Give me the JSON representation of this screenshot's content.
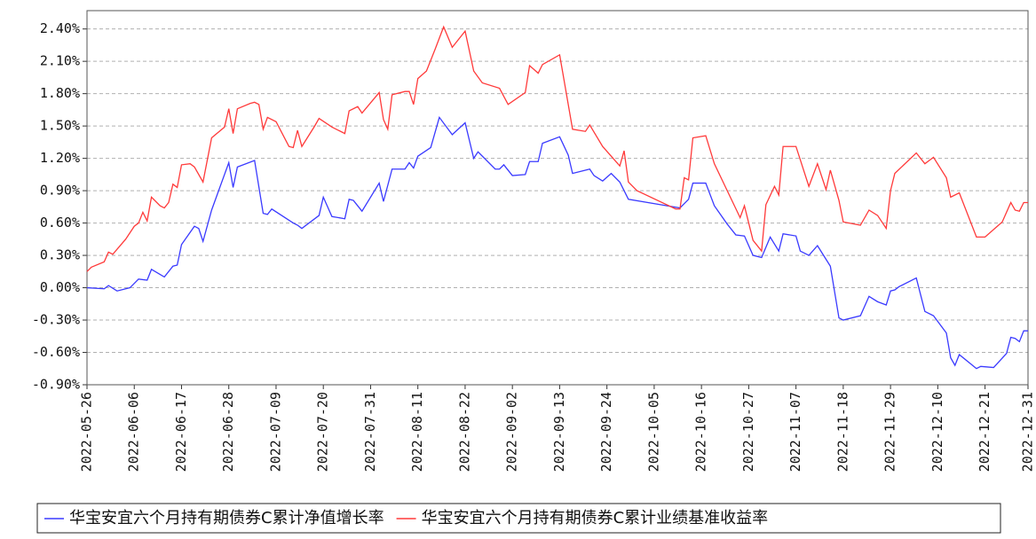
{
  "chart_data": {
    "type": "line",
    "xlim": [
      "2022-05-26",
      "2022-12-31"
    ],
    "xticks": [
      "2022-05-26",
      "2022-06-06",
      "2022-06-17",
      "2022-06-28",
      "2022-07-09",
      "2022-07-20",
      "2022-07-31",
      "2022-08-11",
      "2022-08-22",
      "2022-09-02",
      "2022-09-13",
      "2022-09-24",
      "2022-10-05",
      "2022-10-16",
      "2022-10-27",
      "2022-11-07",
      "2022-11-18",
      "2022-11-29",
      "2022-12-10",
      "2022-12-21",
      "2022-12-31"
    ],
    "ylim": [
      -0.9,
      2.57
    ],
    "yticks": [
      {
        "value": 2.4,
        "label": "2.40%"
      },
      {
        "value": 2.1,
        "label": "2.10%"
      },
      {
        "value": 1.8,
        "label": "1.80%"
      },
      {
        "value": 1.5,
        "label": "1.50%"
      },
      {
        "value": 1.2,
        "label": "1.20%"
      },
      {
        "value": 0.9,
        "label": "0.90%"
      },
      {
        "value": 0.6,
        "label": "0.60%"
      },
      {
        "value": 0.3,
        "label": "0.30%"
      },
      {
        "value": 0,
        "label": "0.00%"
      },
      {
        "value": -0.3,
        "label": "-0.30%"
      },
      {
        "value": -0.6,
        "label": "-0.60%"
      },
      {
        "value": -0.9,
        "label": "-0.90%"
      }
    ],
    "grid": true,
    "series": [
      {
        "name": "华宝安宜六个月持有期债券C累计净值增长率",
        "color": "#3a3aff",
        "x": [
          "2022-05-26",
          "2022-05-30",
          "2022-05-31",
          "2022-06-02",
          "2022-06-05",
          "2022-06-07",
          "2022-06-09",
          "2022-06-10",
          "2022-06-13",
          "2022-06-15",
          "2022-06-16",
          "2022-06-17",
          "2022-06-20",
          "2022-06-21",
          "2022-06-22",
          "2022-06-24",
          "2022-06-28",
          "2022-06-29",
          "2022-06-30",
          "2022-07-04",
          "2022-07-06",
          "2022-07-07",
          "2022-07-08",
          "2022-07-13",
          "2022-07-14",
          "2022-07-15",
          "2022-07-19",
          "2022-07-20",
          "2022-07-22",
          "2022-07-25",
          "2022-07-26",
          "2022-07-27",
          "2022-07-29",
          "2022-08-02",
          "2022-08-03",
          "2022-08-05",
          "2022-08-08",
          "2022-08-09",
          "2022-08-10",
          "2022-08-11",
          "2022-08-14",
          "2022-08-16",
          "2022-08-19",
          "2022-08-22",
          "2022-08-24",
          "2022-08-25",
          "2022-08-29",
          "2022-08-30",
          "2022-08-31",
          "2022-09-02",
          "2022-09-05",
          "2022-09-06",
          "2022-09-08",
          "2022-09-09",
          "2022-09-13",
          "2022-09-15",
          "2022-09-16",
          "2022-09-20",
          "2022-09-21",
          "2022-09-23",
          "2022-09-25",
          "2022-09-27",
          "2022-09-29",
          "2022-10-08",
          "2022-10-11",
          "2022-10-13",
          "2022-10-14",
          "2022-10-17",
          "2022-10-19",
          "2022-10-22",
          "2022-10-24",
          "2022-10-26",
          "2022-10-28",
          "2022-10-30",
          "2022-11-01",
          "2022-11-03",
          "2022-11-04",
          "2022-11-07",
          "2022-11-08",
          "2022-11-10",
          "2022-11-12",
          "2022-11-15",
          "2022-11-17",
          "2022-11-18",
          "2022-11-22",
          "2022-11-24",
          "2022-11-26",
          "2022-11-28",
          "2022-11-29",
          "2022-11-30",
          "2022-12-01",
          "2022-12-05",
          "2022-12-07",
          "2022-12-09",
          "2022-12-12",
          "2022-12-13",
          "2022-12-14",
          "2022-12-15",
          "2022-12-19",
          "2022-12-20",
          "2022-12-23",
          "2022-12-26",
          "2022-12-27",
          "2022-12-28",
          "2022-12-29",
          "2022-12-30",
          "2022-12-31"
        ],
        "values": [
          0.0,
          -0.01,
          0.02,
          -0.03,
          0.0,
          0.08,
          0.07,
          0.17,
          0.1,
          0.2,
          0.21,
          0.4,
          0.57,
          0.55,
          0.43,
          0.72,
          1.16,
          0.93,
          1.12,
          1.18,
          0.69,
          0.68,
          0.73,
          0.6,
          0.58,
          0.55,
          0.67,
          0.84,
          0.66,
          0.64,
          0.82,
          0.81,
          0.71,
          0.97,
          0.8,
          1.1,
          1.1,
          1.16,
          1.11,
          1.22,
          1.3,
          1.58,
          1.42,
          1.53,
          1.2,
          1.26,
          1.1,
          1.1,
          1.14,
          1.04,
          1.05,
          1.17,
          1.17,
          1.34,
          1.4,
          1.23,
          1.06,
          1.1,
          1.04,
          0.99,
          1.06,
          0.98,
          0.82,
          0.76,
          0.74,
          0.82,
          0.97,
          0.97,
          0.76,
          0.59,
          0.49,
          0.48,
          0.3,
          0.28,
          0.47,
          0.34,
          0.5,
          0.48,
          0.34,
          0.3,
          0.39,
          0.2,
          -0.28,
          -0.3,
          -0.26,
          -0.08,
          -0.13,
          -0.16,
          -0.03,
          -0.02,
          0.01,
          0.09,
          -0.22,
          -0.26,
          -0.42,
          -0.65,
          -0.72,
          -0.62,
          -0.75,
          -0.73,
          -0.74,
          -0.61,
          -0.46,
          -0.47,
          -0.5,
          -0.4,
          -0.4
        ]
      },
      {
        "name": "华宝安宜六个月持有期债券C累计业绩基准收益率",
        "color": "#ff3a3a",
        "x": [
          "2022-05-26",
          "2022-05-27",
          "2022-05-30",
          "2022-05-31",
          "2022-06-01",
          "2022-06-04",
          "2022-06-06",
          "2022-06-07",
          "2022-06-08",
          "2022-06-09",
          "2022-06-10",
          "2022-06-12",
          "2022-06-13",
          "2022-06-14",
          "2022-06-15",
          "2022-06-16",
          "2022-06-17",
          "2022-06-19",
          "2022-06-20",
          "2022-06-22",
          "2022-06-24",
          "2022-06-27",
          "2022-06-28",
          "2022-06-29",
          "2022-06-30",
          "2022-07-03",
          "2022-07-04",
          "2022-07-05",
          "2022-07-06",
          "2022-07-07",
          "2022-07-09",
          "2022-07-12",
          "2022-07-13",
          "2022-07-14",
          "2022-07-15",
          "2022-07-18",
          "2022-07-19",
          "2022-07-22",
          "2022-07-25",
          "2022-07-26",
          "2022-07-28",
          "2022-07-29",
          "2022-08-02",
          "2022-08-03",
          "2022-08-04",
          "2022-08-05",
          "2022-08-08",
          "2022-08-09",
          "2022-08-10",
          "2022-08-11",
          "2022-08-13",
          "2022-08-15",
          "2022-08-17",
          "2022-08-19",
          "2022-08-22",
          "2022-08-24",
          "2022-08-26",
          "2022-08-30",
          "2022-09-01",
          "2022-09-05",
          "2022-09-06",
          "2022-09-08",
          "2022-09-09",
          "2022-09-13",
          "2022-09-16",
          "2022-09-19",
          "2022-09-20",
          "2022-09-23",
          "2022-09-27",
          "2022-09-28",
          "2022-09-29",
          "2022-10-01",
          "2022-10-10",
          "2022-10-11",
          "2022-10-12",
          "2022-10-13",
          "2022-10-14",
          "2022-10-17",
          "2022-10-19",
          "2022-10-22",
          "2022-10-25",
          "2022-10-26",
          "2022-10-28",
          "2022-10-30",
          "2022-10-31",
          "2022-11-02",
          "2022-11-03",
          "2022-11-04",
          "2022-11-07",
          "2022-11-10",
          "2022-11-12",
          "2022-11-14",
          "2022-11-15",
          "2022-11-17",
          "2022-11-18",
          "2022-11-22",
          "2022-11-24",
          "2022-11-26",
          "2022-11-28",
          "2022-11-29",
          "2022-11-30",
          "2022-12-05",
          "2022-12-07",
          "2022-12-09",
          "2022-12-12",
          "2022-12-13",
          "2022-12-15",
          "2022-12-19",
          "2022-12-21",
          "2022-12-25",
          "2022-12-27",
          "2022-12-28",
          "2022-12-29",
          "2022-12-30",
          "2022-12-31"
        ],
        "values": [
          0.15,
          0.19,
          0.24,
          0.33,
          0.31,
          0.45,
          0.57,
          0.6,
          0.7,
          0.62,
          0.84,
          0.76,
          0.74,
          0.79,
          0.96,
          0.93,
          1.14,
          1.15,
          1.12,
          0.98,
          1.39,
          1.49,
          1.66,
          1.43,
          1.66,
          1.71,
          1.72,
          1.7,
          1.47,
          1.58,
          1.54,
          1.31,
          1.3,
          1.46,
          1.31,
          1.5,
          1.57,
          1.49,
          1.43,
          1.64,
          1.68,
          1.62,
          1.81,
          1.56,
          1.47,
          1.79,
          1.82,
          1.82,
          1.7,
          1.94,
          2.01,
          2.21,
          2.42,
          2.23,
          2.38,
          2.01,
          1.9,
          1.85,
          1.7,
          1.81,
          2.06,
          1.99,
          2.07,
          2.16,
          1.47,
          1.45,
          1.51,
          1.31,
          1.13,
          1.27,
          0.98,
          0.9,
          0.73,
          0.73,
          1.02,
          1.0,
          1.39,
          1.41,
          1.15,
          0.9,
          0.65,
          0.76,
          0.44,
          0.34,
          0.77,
          0.94,
          0.86,
          1.31,
          1.31,
          0.94,
          1.15,
          0.91,
          1.09,
          0.81,
          0.61,
          0.58,
          0.72,
          0.67,
          0.55,
          0.9,
          1.06,
          1.25,
          1.15,
          1.21,
          1.02,
          0.84,
          0.88,
          0.47,
          0.47,
          0.61,
          0.79,
          0.72,
          0.71,
          0.79,
          0.79
        ]
      }
    ]
  }
}
